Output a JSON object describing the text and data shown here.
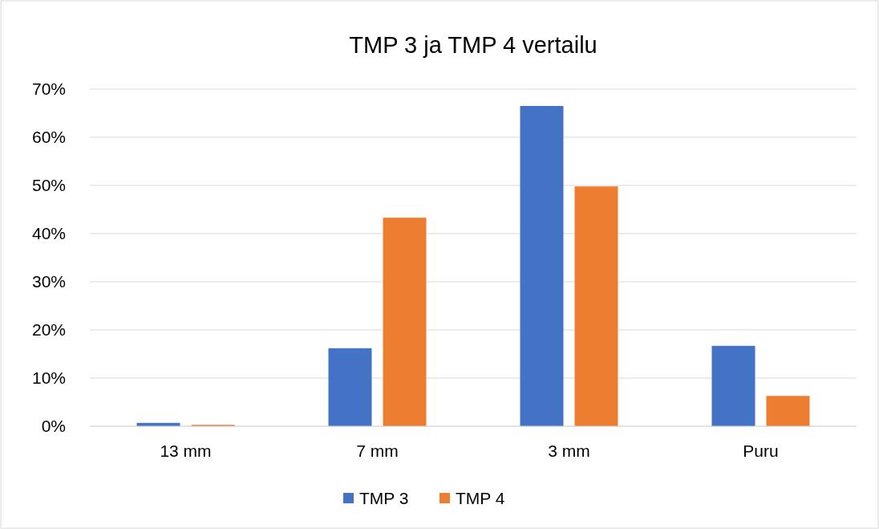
{
  "chart_data": {
    "type": "bar",
    "title": "TMP 3 ja TMP 4 vertailu",
    "categories": [
      "13 mm",
      "7 mm",
      "3 mm",
      "Puru"
    ],
    "series": [
      {
        "name": "TMP 3",
        "color": "#4472c4",
        "values": [
          0.7,
          16.2,
          66.5,
          16.7
        ]
      },
      {
        "name": "TMP 4",
        "color": "#ed7d31",
        "values": [
          0.3,
          43.3,
          49.8,
          6.3
        ]
      }
    ],
    "ylim": [
      0,
      70
    ],
    "yticks": [
      {
        "value": 0,
        "label": "0%"
      },
      {
        "value": 10,
        "label": "10%"
      },
      {
        "value": 20,
        "label": "20%"
      },
      {
        "value": 30,
        "label": "30%"
      },
      {
        "value": 40,
        "label": "40%"
      },
      {
        "value": 50,
        "label": "50%"
      },
      {
        "value": 60,
        "label": "60%"
      },
      {
        "value": 70,
        "label": "70%"
      }
    ],
    "grid": "y",
    "legend": "bottom"
  }
}
